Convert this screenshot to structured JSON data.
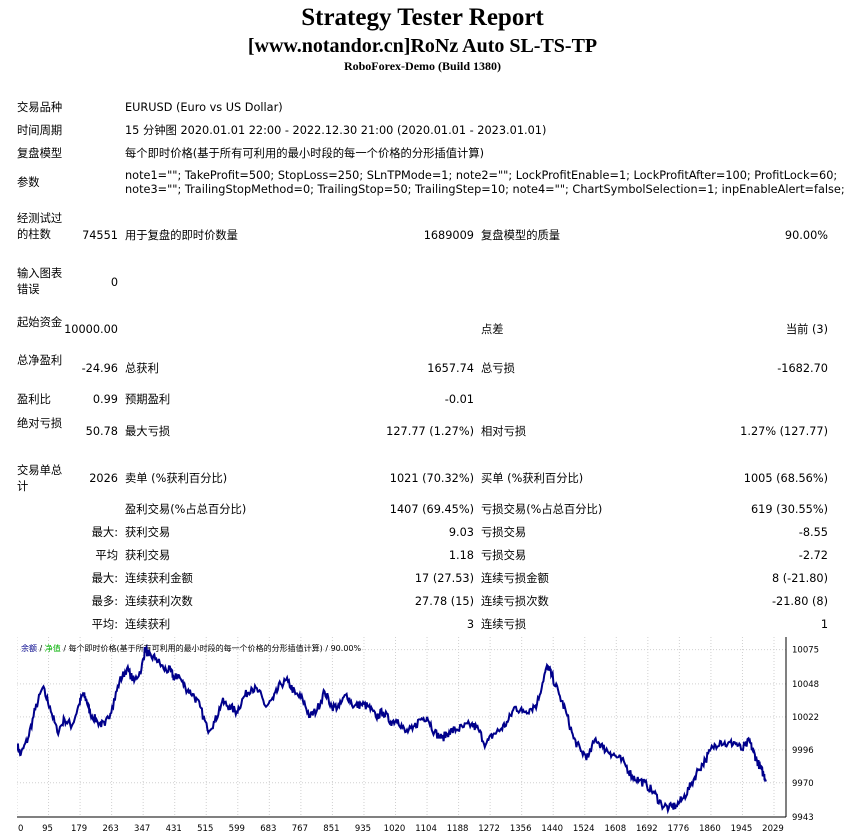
{
  "report": {
    "title": "Strategy Tester Report",
    "subtitle": "[www.notandor.cn]RoNz Auto SL-TS-TP",
    "build": "RoboForex-Demo (Build 1380)"
  },
  "settings": {
    "symbol_label": "交易品种",
    "symbol_value": "EURUSD (Euro vs US Dollar)",
    "period_label": "时间周期",
    "period_value": "15 分钟图 2020.01.01 22:00 - 2022.12.30 21:00 (2020.01.01 - 2023.01.01)",
    "model_label": "复盘模型",
    "model_value": "每个即时价格(基于所有可利用的最小时段的每一个价格的分形插值计算)",
    "params_label": "参数",
    "params_line1": "note1=\"\"; TakeProfit=500; StopLoss=250; SLnTPMode=1; note2=\"\"; LockProfitEnable=1; LockProfitAfter=100; ProfitLock=60;",
    "params_line2": "note3=\"\"; TrailingStopMethod=0; TrailingStop=50; TrailingStep=10; note4=\"\"; ChartSymbolSelection=1; inpEnableAlert=false;"
  },
  "stats": {
    "bars_label": "经测试过的柱数",
    "bars_value": "74551",
    "ticks_label": "用于复盘的即时价数量",
    "ticks_value": "1689009",
    "quality_label": "复盘模型的质量",
    "quality_value": "90.00%",
    "mismatch_label": "输入图表错误",
    "mismatch_value": "0",
    "deposit_label": "起始资金",
    "deposit_value": "10000.00",
    "spread_label": "点差",
    "spread_value": "当前 (3)",
    "net_label": "总净盈利",
    "net_value": "-24.96",
    "gross_profit_label": "总获利",
    "gross_profit_value": "1657.74",
    "gross_loss_label": "总亏损",
    "gross_loss_value": "-1682.70",
    "pf_label": "盈利比",
    "pf_value": "0.99",
    "expected_label": "预期盈利",
    "expected_value": "-0.01",
    "abs_dd_label": "绝对亏损",
    "abs_dd_value": "50.78",
    "max_dd_label": "最大亏损",
    "max_dd_value": "127.77 (1.27%)",
    "rel_dd_label": "相对亏损",
    "rel_dd_value": "1.27% (127.77)",
    "trades_label": "交易单总计",
    "trades_value": "2026",
    "short_label": "卖单 (%获利百分比)",
    "short_value": "1021 (70.32%)",
    "long_label": "买单 (%获利百分比)",
    "long_value": "1005 (68.56%)",
    "win_label": "盈利交易(%占总百分比)",
    "win_value": "1407 (69.45%)",
    "loss_label": "亏损交易(%占总百分比)",
    "loss_value": "619 (30.55%)",
    "max_prefix": "最大:",
    "largest_win_label": "获利交易",
    "largest_win_value": "9.03",
    "largest_loss_label": "亏损交易",
    "largest_loss_value": "-8.55",
    "avg_prefix": "平均",
    "avg_win_label": "获利交易",
    "avg_win_value": "1.18",
    "avg_loss_label": "亏损交易",
    "avg_loss_value": "-2.72",
    "max2_prefix": "最大:",
    "cons_win_amt_label": "连续获利金额",
    "cons_win_amt_value": "17 (27.53)",
    "cons_loss_amt_label": "连续亏损金额",
    "cons_loss_amt_value": "8 (-21.80)",
    "most_prefix": "最多:",
    "cons_win_cnt_label": "连续获利次数",
    "cons_win_cnt_value": "27.78 (15)",
    "cons_loss_cnt_label": "连续亏损次数",
    "cons_loss_cnt_value": "-21.80 (8)",
    "avg2_prefix": "平均:",
    "avg_cons_win_label": "连续获利",
    "avg_cons_win_value": "3",
    "avg_cons_loss_label": "连续亏损",
    "avg_cons_loss_value": "1"
  },
  "colors": {
    "balance": "#00008b",
    "legend_balance": "#00008b",
    "legend_equity": "#00b000",
    "grid": "#d0d0d0"
  },
  "chart_data": {
    "type": "line",
    "legend": {
      "balance": "余额",
      "sep1": " / ",
      "equity": "净值",
      "sep2": " / ",
      "model": "每个即时价格(基于所有可利用的最小时段的每一个价格的分形插值计算)",
      "sep3": " / ",
      "quality": "90.00%"
    },
    "x_ticks": [
      "0",
      "95",
      "179",
      "263",
      "347",
      "431",
      "515",
      "599",
      "683",
      "767",
      "851",
      "935",
      "1020",
      "1104",
      "1188",
      "1272",
      "1356",
      "1440",
      "1524",
      "1608",
      "1692",
      "1776",
      "1860",
      "1945",
      "2029"
    ],
    "y_ticks": [
      "10075",
      "10048",
      "10022",
      "9996",
      "9970",
      "9943"
    ],
    "ylim": [
      9943,
      10085
    ],
    "xlim": [
      0,
      2100
    ],
    "series": [
      {
        "x": [
          0,
          10,
          30,
          50,
          70,
          90,
          110,
          130,
          150,
          170,
          180,
          190,
          200,
          220,
          240,
          260,
          280,
          300,
          320,
          340,
          350,
          360,
          380,
          400,
          420,
          430,
          440,
          460,
          480,
          500,
          520,
          540,
          560,
          580,
          600,
          620,
          640,
          660,
          680,
          700,
          720,
          740,
          760,
          780,
          800,
          820,
          840,
          860,
          880,
          900,
          920,
          940,
          960,
          980,
          1000,
          1020,
          1040,
          1060,
          1080,
          1100,
          1120,
          1140,
          1160,
          1180,
          1200,
          1220,
          1240,
          1260,
          1280,
          1300,
          1320,
          1340,
          1360,
          1380,
          1400,
          1420,
          1440,
          1450,
          1460,
          1480,
          1500,
          1520,
          1540,
          1560,
          1580,
          1600,
          1620,
          1640,
          1660,
          1680,
          1700,
          1720,
          1740,
          1760,
          1780,
          1800,
          1820,
          1840,
          1860,
          1880,
          1900,
          1920,
          1940,
          1960,
          1980,
          2000,
          2010,
          2020,
          2030,
          2040,
          2045
        ],
        "y": [
          10000,
          9992,
          10005,
          10028,
          10045,
          10030,
          10010,
          10020,
          10015,
          10032,
          10040,
          10035,
          10025,
          10018,
          10015,
          10030,
          10050,
          10060,
          10050,
          10060,
          10076,
          10070,
          10068,
          10060,
          10058,
          10052,
          10055,
          10045,
          10040,
          10030,
          10012,
          10018,
          10034,
          10030,
          10026,
          10038,
          10045,
          10042,
          10030,
          10036,
          10048,
          10050,
          10040,
          10036,
          10022,
          10028,
          10042,
          10030,
          10030,
          10040,
          10030,
          10032,
          10030,
          10022,
          10026,
          10018,
          10020,
          10010,
          10012,
          10020,
          10022,
          10010,
          10005,
          10010,
          10012,
          10014,
          10016,
          10012,
          10000,
          10008,
          10012,
          10018,
          10030,
          10026,
          10028,
          10032,
          10055,
          10062,
          10055,
          10040,
          10025,
          10005,
          9995,
          9990,
          10005,
          9998,
          9994,
          9990,
          9985,
          9975,
          9972,
          9968,
          9962,
          9953,
          9950,
          9952,
          9958,
          9968,
          9980,
          9988,
          9998,
          10003,
          10000,
          10002,
          9996,
          10003,
          9995,
          9988,
          9982,
          9976,
          9972
        ]
      }
    ]
  }
}
